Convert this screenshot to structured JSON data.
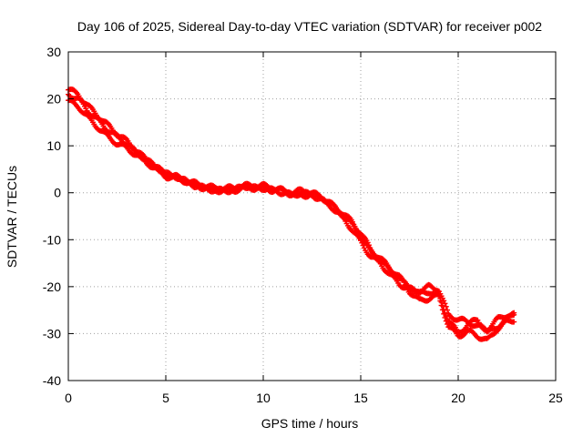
{
  "colors": {
    "series": "#ff0000",
    "axis": "#000000",
    "grid": "#a0a0a0",
    "background": "#ffffff"
  },
  "chart_data": {
    "type": "scatter",
    "title": "Day 106 of 2025, Sidereal Day-to-day VTEC variation (SDTVAR) for receiver p002",
    "xlabel": "GPS time / hours",
    "ylabel": "SDTVAR / TECUs",
    "xlim": [
      0,
      25
    ],
    "ylim": [
      -40,
      30
    ],
    "xticks": [
      0,
      5,
      10,
      15,
      20,
      25
    ],
    "xtick_labels": [
      "0",
      "5",
      "10",
      "15",
      "20",
      "25"
    ],
    "yticks": [
      -40,
      -30,
      -20,
      -10,
      0,
      10,
      20,
      30
    ],
    "ytick_labels": [
      "-40",
      "-30",
      "-20",
      "-10",
      "0",
      "10",
      "20",
      "30"
    ],
    "grid": true,
    "marker": "plus",
    "series": [
      {
        "name": "SDTVAR",
        "bands": [
          {
            "x": [
              0.0,
              0.5,
              1.0,
              1.5,
              2.0,
              2.5,
              3.0,
              3.5,
              4.0,
              4.5,
              5.0,
              5.5,
              6.0,
              6.5,
              7.0,
              7.5,
              8.0,
              8.5,
              9.0,
              9.5,
              10.0,
              10.5,
              11.0,
              11.5,
              12.0,
              12.5,
              13.0,
              13.5,
              14.0,
              14.5,
              15.0,
              15.5,
              16.0,
              16.5,
              17.0,
              17.5,
              18.0,
              18.5,
              19.0,
              19.5,
              20.0,
              20.5,
              21.0,
              21.5,
              22.0,
              22.5,
              22.9
            ],
            "y": [
              19.5,
              18.5,
              16.0,
              14.0,
              12.0,
              10.5,
              9.5,
              8.0,
              6.5,
              5.0,
              3.5,
              3.0,
              2.5,
              1.5,
              1.0,
              0.5,
              0.5,
              0.5,
              1.0,
              1.0,
              1.0,
              0.5,
              0.5,
              -0.5,
              -0.5,
              -0.5,
              -1.0,
              -2.5,
              -4.0,
              -6.0,
              -8.5,
              -12.0,
              -14.0,
              -16.0,
              -18.0,
              -21.0,
              -23.0,
              -22.5,
              -22.0,
              -28.5,
              -30.5,
              -29.5,
              -30.5,
              -31.5,
              -29.0,
              -27.5,
              -27.0
            ]
          },
          {
            "x": [
              0.0,
              0.5,
              1.0,
              1.5,
              2.0,
              2.5,
              3.0,
              3.5,
              4.0,
              4.5,
              5.0,
              5.5,
              6.0,
              6.5,
              7.0,
              7.5,
              8.0,
              8.5,
              9.0,
              9.5,
              10.0,
              10.5,
              11.0,
              11.5,
              12.0,
              12.5,
              13.0,
              13.5,
              14.0,
              14.5,
              15.0,
              15.5,
              16.0,
              16.5,
              17.0,
              17.5,
              18.0,
              18.5,
              19.0,
              19.5,
              20.0,
              20.5,
              21.0,
              21.5,
              22.0,
              22.5,
              22.9
            ],
            "y": [
              21.0,
              20.0,
              17.5,
              15.5,
              13.5,
              12.0,
              10.5,
              8.5,
              7.0,
              5.5,
              4.0,
              3.5,
              2.5,
              1.5,
              1.0,
              0.5,
              0.5,
              0.5,
              1.5,
              1.0,
              1.0,
              0.5,
              0.0,
              -0.5,
              0.0,
              -0.5,
              -1.5,
              -3.0,
              -5.0,
              -7.5,
              -10.5,
              -13.5,
              -15.0,
              -17.5,
              -19.5,
              -20.5,
              -21.0,
              -20.0,
              -20.5,
              -26.0,
              -27.0,
              -27.5,
              -28.5,
              -29.0,
              -27.0,
              -26.0,
              -26.0
            ]
          },
          {
            "x": [
              0.0,
              0.5,
              1.0,
              1.5,
              2.0,
              2.5,
              3.0,
              3.5,
              4.0,
              4.5,
              5.0,
              5.5,
              6.0,
              6.5,
              7.0,
              7.5,
              8.0,
              8.5,
              9.0,
              9.5,
              10.0,
              10.5,
              11.0,
              11.5,
              12.0,
              12.5,
              13.0,
              13.5,
              14.0,
              14.5,
              15.0,
              15.5,
              16.0,
              16.5,
              17.0,
              17.5,
              18.0,
              18.5,
              19.0,
              19.5,
              20.0,
              20.5,
              21.0,
              21.5,
              22.0,
              22.5,
              22.9
            ],
            "y": [
              22.0,
              21.0,
              18.5,
              16.5,
              14.5,
              12.5,
              11.0,
              9.0,
              7.0,
              5.5,
              4.0,
              3.5,
              2.5,
              2.0,
              1.5,
              1.0,
              1.0,
              1.0,
              1.5,
              1.5,
              1.5,
              1.0,
              0.5,
              0.0,
              0.5,
              0.0,
              -1.0,
              -2.5,
              -4.5,
              -6.5,
              -9.5,
              -12.5,
              -14.5,
              -16.5,
              -18.5,
              -20.0,
              -21.5,
              -21.0,
              -22.0,
              -27.0,
              -30.0,
              -28.0,
              -27.0,
              -30.0,
              -28.5,
              -27.0,
              -25.5
            ]
          }
        ]
      }
    ]
  }
}
